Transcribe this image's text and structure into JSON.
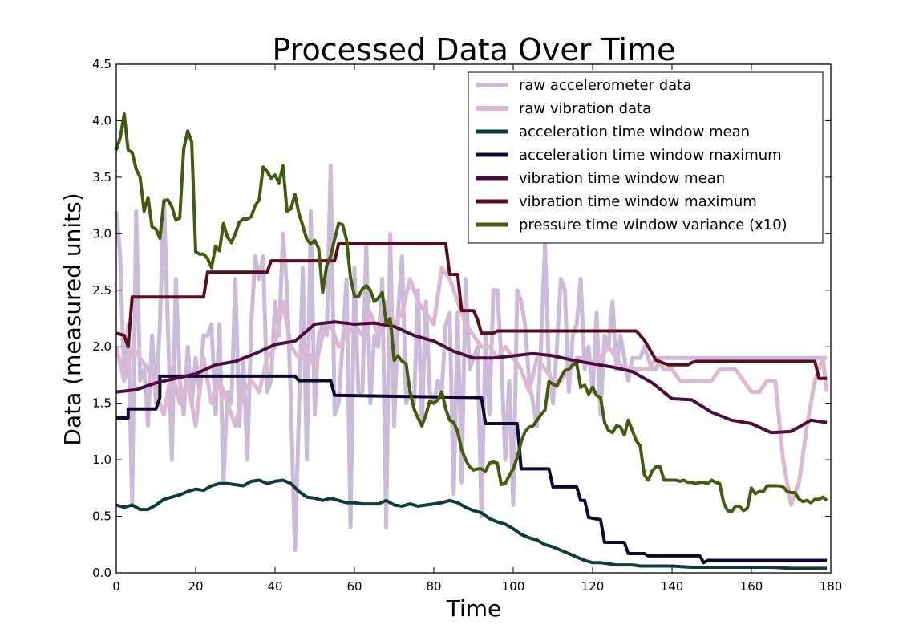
{
  "chart_data": {
    "type": "line",
    "title": "Processed Data Over Time",
    "xlabel": "Time",
    "ylabel": "Data (measured units)",
    "xlim": [
      0,
      180
    ],
    "ylim": [
      0,
      4.5
    ],
    "xticks": [
      0,
      20,
      40,
      60,
      80,
      100,
      120,
      140,
      160,
      180
    ],
    "yticks": [
      0.0,
      0.5,
      1.0,
      1.5,
      2.0,
      2.5,
      3.0,
      3.5,
      4.0,
      4.5
    ],
    "xtick_labels": [
      "0",
      "20",
      "40",
      "60",
      "80",
      "100",
      "120",
      "140",
      "160",
      "180"
    ],
    "ytick_labels": [
      "0.0",
      "0.5",
      "1.0",
      "1.5",
      "2.0",
      "2.5",
      "3.0",
      "3.5",
      "4.0",
      "4.5"
    ],
    "grid": false,
    "legend_position": "top-right",
    "series": [
      {
        "name": "raw accelerometer data",
        "color": "#cbbad9",
        "width": 5,
        "x": [
          0,
          1,
          2,
          3,
          4,
          5,
          6,
          7,
          8,
          9,
          10,
          11,
          12,
          13,
          14,
          15,
          16,
          17,
          18,
          19,
          20,
          21,
          22,
          23,
          24,
          25,
          26,
          27,
          28,
          29,
          30,
          31,
          32,
          33,
          34,
          35,
          36,
          37,
          38,
          39,
          40,
          41,
          42,
          43,
          44,
          45,
          46,
          47,
          48,
          49,
          50,
          51,
          52,
          53,
          54,
          55,
          56,
          57,
          58,
          59,
          60,
          61,
          62,
          63,
          64,
          65,
          66,
          67,
          68,
          69,
          70,
          71,
          72,
          73,
          74,
          75,
          76,
          77,
          78,
          79,
          80,
          81,
          82,
          83,
          84,
          85,
          86,
          87,
          88,
          89,
          90,
          91,
          92,
          93,
          94,
          95,
          96,
          97,
          98,
          99,
          100,
          101,
          102,
          103,
          104,
          105,
          106,
          107,
          108,
          109,
          110,
          111,
          112,
          113,
          114,
          115,
          116,
          117,
          118,
          119,
          120,
          121,
          122,
          123,
          124,
          125,
          126,
          127,
          128,
          129,
          130,
          131,
          132,
          133,
          134,
          135,
          136,
          137,
          138,
          139,
          140,
          145,
          150,
          155,
          160,
          165,
          170,
          175,
          179
        ],
        "y": [
          3.2,
          2.8,
          1.7,
          2.2,
          0.6,
          3.2,
          1.7,
          1.8,
          1.3,
          2.1,
          1.5,
          2.2,
          3.3,
          2.2,
          1.0,
          2.6,
          1.7,
          1.4,
          2.0,
          1.5,
          1.9,
          1.6,
          2.1,
          2.1,
          2.2,
          1.4,
          2.2,
          0.8,
          1.6,
          1.5,
          2.6,
          1.3,
          1.9,
          1.0,
          2.2,
          2.8,
          2.6,
          2.8,
          1.6,
          1.7,
          2.4,
          2.1,
          3.0,
          2.5,
          1.5,
          0.2,
          1.4,
          2.7,
          1.0,
          3.2,
          1.4,
          2.1,
          2.2,
          2.1,
          3.6,
          1.4,
          1.5,
          2.0,
          2.6,
          0.4,
          2.7,
          1.6,
          1.6,
          2.9,
          1.5,
          2.1,
          2.0,
          2.6,
          0.4,
          3.0,
          1.3,
          2.3,
          2.8,
          1.5,
          1.6,
          1.5,
          2.5,
          1.3,
          2.4,
          1.6,
          1.5,
          1.7,
          1.6,
          2.2,
          2.3,
          0.7,
          2.3,
          0.8,
          2.6,
          1.8,
          1.9,
          2.0,
          0.5,
          2.1,
          1.4,
          2.5,
          2.5,
          1.9,
          1.0,
          1.7,
          0.6,
          2.5,
          2.4,
          2.2,
          1.7,
          1.5,
          1.3,
          2.0,
          2.9,
          1.8,
          1.5,
          2.0,
          2.6,
          2.5,
          1.6,
          2.1,
          2.2,
          2.6,
          1.8,
          2.0,
          1.6,
          2.3,
          1.4,
          2.1,
          2.0,
          2.4,
          1.8,
          2.1,
          1.9,
          1.7,
          1.9,
          1.9,
          1.9,
          2.0,
          1.9,
          1.8,
          1.8,
          1.9,
          1.9,
          1.9,
          1.9,
          1.9,
          1.9,
          1.9,
          1.9,
          1.9,
          1.9,
          1.9,
          1.9
        ]
      },
      {
        "name": "raw vibration data",
        "color": "#dcb8d2",
        "width": 5,
        "x": [
          0,
          2,
          4,
          6,
          8,
          10,
          12,
          14,
          16,
          18,
          20,
          22,
          24,
          26,
          28,
          30,
          32,
          34,
          36,
          38,
          40,
          42,
          44,
          46,
          48,
          50,
          52,
          54,
          56,
          58,
          60,
          62,
          64,
          66,
          68,
          70,
          72,
          74,
          76,
          78,
          80,
          82,
          84,
          86,
          88,
          90,
          92,
          94,
          96,
          98,
          100,
          102,
          104,
          106,
          108,
          110,
          112,
          114,
          116,
          118,
          120,
          122,
          124,
          126,
          128,
          130,
          132,
          134,
          136,
          138,
          140,
          142,
          144,
          146,
          148,
          150,
          152,
          154,
          156,
          158,
          160,
          162,
          164,
          166,
          168,
          170,
          172,
          174,
          176,
          178,
          179
        ],
        "y": [
          2.0,
          1.7,
          2.0,
          1.9,
          1.8,
          1.6,
          1.4,
          1.8,
          1.5,
          1.7,
          1.3,
          1.9,
          1.5,
          1.7,
          1.5,
          1.3,
          1.6,
          1.7,
          1.6,
          1.9,
          2.0,
          2.4,
          2.0,
          1.9,
          2.0,
          1.8,
          2.1,
          2.2,
          2.0,
          2.1,
          2.2,
          2.1,
          2.3,
          2.1,
          2.4,
          2.2,
          2.3,
          2.6,
          2.4,
          2.3,
          2.2,
          2.7,
          2.6,
          2.4,
          2.2,
          2.1,
          2.0,
          2.0,
          1.9,
          2.0,
          1.9,
          1.8,
          1.6,
          1.9,
          1.8,
          1.7,
          1.7,
          1.8,
          1.9,
          1.9,
          1.8,
          1.9,
          2.0,
          1.9,
          1.8,
          1.8,
          1.8,
          1.8,
          1.9,
          1.8,
          1.8,
          1.7,
          1.7,
          1.7,
          1.7,
          1.7,
          1.8,
          1.8,
          1.8,
          1.7,
          1.6,
          1.6,
          1.7,
          1.7,
          1.0,
          0.6,
          0.8,
          1.3,
          1.7,
          1.9,
          1.6
        ]
      },
      {
        "name": "acceleration time window mean",
        "color": "#0d3d3a",
        "width": 4,
        "x": [
          0,
          2,
          4,
          6,
          8,
          10,
          12,
          14,
          16,
          18,
          20,
          22,
          24,
          26,
          28,
          30,
          32,
          34,
          36,
          38,
          40,
          42,
          44,
          46,
          48,
          50,
          52,
          54,
          56,
          58,
          60,
          62,
          64,
          66,
          68,
          70,
          72,
          74,
          76,
          78,
          80,
          82,
          84,
          86,
          88,
          90,
          92,
          94,
          96,
          98,
          100,
          102,
          104,
          106,
          108,
          110,
          112,
          114,
          116,
          118,
          120,
          122,
          124,
          126,
          128,
          130,
          132,
          134,
          136,
          138,
          140,
          145,
          150,
          155,
          160,
          165,
          170,
          175,
          179
        ],
        "y": [
          0.6,
          0.58,
          0.6,
          0.56,
          0.56,
          0.6,
          0.65,
          0.67,
          0.69,
          0.72,
          0.74,
          0.73,
          0.77,
          0.79,
          0.79,
          0.78,
          0.77,
          0.81,
          0.82,
          0.79,
          0.81,
          0.82,
          0.79,
          0.72,
          0.67,
          0.66,
          0.64,
          0.66,
          0.64,
          0.62,
          0.62,
          0.61,
          0.61,
          0.61,
          0.64,
          0.6,
          0.59,
          0.61,
          0.59,
          0.6,
          0.61,
          0.62,
          0.64,
          0.62,
          0.58,
          0.55,
          0.53,
          0.48,
          0.45,
          0.43,
          0.39,
          0.34,
          0.31,
          0.29,
          0.25,
          0.23,
          0.2,
          0.17,
          0.14,
          0.11,
          0.09,
          0.09,
          0.08,
          0.07,
          0.07,
          0.07,
          0.06,
          0.06,
          0.06,
          0.06,
          0.06,
          0.05,
          0.05,
          0.05,
          0.05,
          0.05,
          0.04,
          0.04,
          0.04
        ]
      },
      {
        "name": "acceleration time window maximum",
        "color": "#0c0a33",
        "width": 4,
        "x": [
          0,
          3,
          3,
          4,
          10,
          11,
          11,
          45,
          46,
          54,
          55,
          92,
          93,
          101,
          102,
          109,
          110,
          116,
          117,
          118,
          119,
          122,
          123,
          128,
          129,
          133,
          134,
          147,
          148,
          149,
          179
        ],
        "y": [
          1.37,
          1.37,
          1.45,
          1.45,
          1.45,
          1.55,
          1.74,
          1.74,
          1.7,
          1.7,
          1.57,
          1.55,
          1.32,
          1.32,
          0.92,
          0.92,
          0.76,
          0.76,
          0.64,
          0.64,
          0.49,
          0.47,
          0.27,
          0.27,
          0.17,
          0.17,
          0.15,
          0.15,
          0.09,
          0.11,
          0.11
        ]
      },
      {
        "name": "vibration time window mean",
        "color": "#4b0c3e",
        "width": 4,
        "x": [
          0,
          5,
          10,
          15,
          20,
          25,
          30,
          35,
          40,
          45,
          50,
          55,
          60,
          65,
          70,
          75,
          80,
          85,
          90,
          95,
          100,
          105,
          110,
          115,
          120,
          125,
          130,
          135,
          140,
          145,
          150,
          155,
          160,
          165,
          170,
          175,
          179
        ],
        "y": [
          1.6,
          1.62,
          1.68,
          1.72,
          1.76,
          1.84,
          1.87,
          1.94,
          2.02,
          2.05,
          2.2,
          2.22,
          2.2,
          2.21,
          2.18,
          2.1,
          2.05,
          1.96,
          1.9,
          1.9,
          1.92,
          1.94,
          1.92,
          1.88,
          1.85,
          1.82,
          1.78,
          1.68,
          1.54,
          1.53,
          1.42,
          1.35,
          1.32,
          1.24,
          1.25,
          1.35,
          1.33
        ]
      },
      {
        "name": "vibration time window maximum",
        "color": "#5c0d1c",
        "width": 4,
        "x": [
          0,
          2,
          3,
          4,
          22,
          23,
          38,
          39,
          55,
          56,
          83,
          84,
          86,
          87,
          90,
          91,
          92,
          95,
          96,
          131,
          133,
          136,
          139,
          142,
          144,
          145,
          146,
          176,
          177,
          179
        ],
        "y": [
          2.12,
          2.1,
          2.0,
          2.44,
          2.44,
          2.66,
          2.66,
          2.76,
          2.76,
          2.91,
          2.91,
          2.64,
          2.64,
          2.32,
          2.32,
          2.24,
          2.12,
          2.12,
          2.14,
          2.14,
          2.06,
          1.88,
          1.84,
          1.84,
          1.84,
          1.86,
          1.87,
          1.87,
          1.72,
          1.72
        ],
        "step": false
      },
      {
        "name": "pressure time window variance (x10)",
        "color": "#415b0f",
        "width": 4,
        "x": [
          0,
          1,
          2,
          3,
          4,
          5,
          6,
          7,
          8,
          9,
          10,
          11,
          12,
          13,
          14,
          15,
          16,
          17,
          18,
          19,
          20,
          21,
          22,
          23,
          24,
          25,
          26,
          27,
          28,
          29,
          30,
          31,
          32,
          33,
          34,
          35,
          36,
          37,
          38,
          39,
          40,
          41,
          42,
          43,
          44,
          45,
          46,
          47,
          48,
          49,
          50,
          51,
          52,
          53,
          54,
          55,
          56,
          57,
          58,
          59,
          60,
          61,
          62,
          63,
          64,
          65,
          66,
          67,
          68,
          69,
          70,
          71,
          72,
          73,
          74,
          75,
          76,
          77,
          78,
          79,
          80,
          81,
          82,
          83,
          84,
          85,
          86,
          87,
          88,
          89,
          90,
          91,
          92,
          93,
          94,
          95,
          96,
          97,
          98,
          99,
          100,
          101,
          102,
          103,
          104,
          105,
          106,
          107,
          108,
          109,
          110,
          111,
          112,
          113,
          114,
          115,
          116,
          117,
          118,
          119,
          120,
          121,
          122,
          123,
          124,
          125,
          126,
          127,
          128,
          129,
          130,
          131,
          132,
          133,
          134,
          135,
          136,
          137,
          138,
          139,
          140,
          141,
          142,
          143,
          144,
          145,
          146,
          147,
          148,
          149,
          150,
          151,
          152,
          153,
          154,
          155,
          156,
          157,
          158,
          159,
          160,
          161,
          162,
          163,
          164,
          165,
          166,
          167,
          168,
          169,
          170,
          171,
          172,
          173,
          174,
          175,
          176,
          177,
          178,
          179
        ],
        "y": [
          3.74,
          3.85,
          4.06,
          3.74,
          3.72,
          3.57,
          3.5,
          3.2,
          3.32,
          3.06,
          3.04,
          2.96,
          3.29,
          3.3,
          3.24,
          3.12,
          3.14,
          3.75,
          3.91,
          3.81,
          2.84,
          2.82,
          2.82,
          2.78,
          2.7,
          2.89,
          2.85,
          3.09,
          2.97,
          2.92,
          3.0,
          3.1,
          3.13,
          3.13,
          3.15,
          3.25,
          3.3,
          3.59,
          3.55,
          3.49,
          3.52,
          3.45,
          3.6,
          3.2,
          3.22,
          3.35,
          3.18,
          3.07,
          2.95,
          2.91,
          2.94,
          2.87,
          2.48,
          2.72,
          2.8,
          2.95,
          3.09,
          3.08,
          2.95,
          2.61,
          2.45,
          2.44,
          2.51,
          2.54,
          2.5,
          2.4,
          2.43,
          2.48,
          2.21,
          2.25,
          1.88,
          1.92,
          1.87,
          1.85,
          1.6,
          1.45,
          1.37,
          1.3,
          1.4,
          1.52,
          1.5,
          1.53,
          1.6,
          1.45,
          1.35,
          1.33,
          1.25,
          1.09,
          1.0,
          0.94,
          0.91,
          0.92,
          0.92,
          0.9,
          0.97,
          0.98,
          0.97,
          0.78,
          0.79,
          0.86,
          0.92,
          1.02,
          1.16,
          1.25,
          1.29,
          1.3,
          1.35,
          1.4,
          1.44,
          1.69,
          1.67,
          1.65,
          1.73,
          1.79,
          1.8,
          1.84,
          1.85,
          1.64,
          1.66,
          1.58,
          1.64,
          1.57,
          1.55,
          1.33,
          1.26,
          1.24,
          1.3,
          1.29,
          1.22,
          1.35,
          1.26,
          1.17,
          1.12,
          0.87,
          0.82,
          0.9,
          0.94,
          0.94,
          0.82,
          0.82,
          0.82,
          0.82,
          0.81,
          0.82,
          0.8,
          0.8,
          0.79,
          0.8,
          0.8,
          0.79,
          0.82,
          0.8,
          0.79,
          0.62,
          0.55,
          0.54,
          0.59,
          0.59,
          0.55,
          0.57,
          0.75,
          0.7,
          0.72,
          0.72,
          0.77,
          0.77,
          0.77,
          0.77,
          0.76,
          0.72,
          0.71,
          0.71,
          0.65,
          0.63,
          0.64,
          0.62,
          0.65,
          0.65,
          0.67,
          0.64
        ]
      }
    ]
  }
}
